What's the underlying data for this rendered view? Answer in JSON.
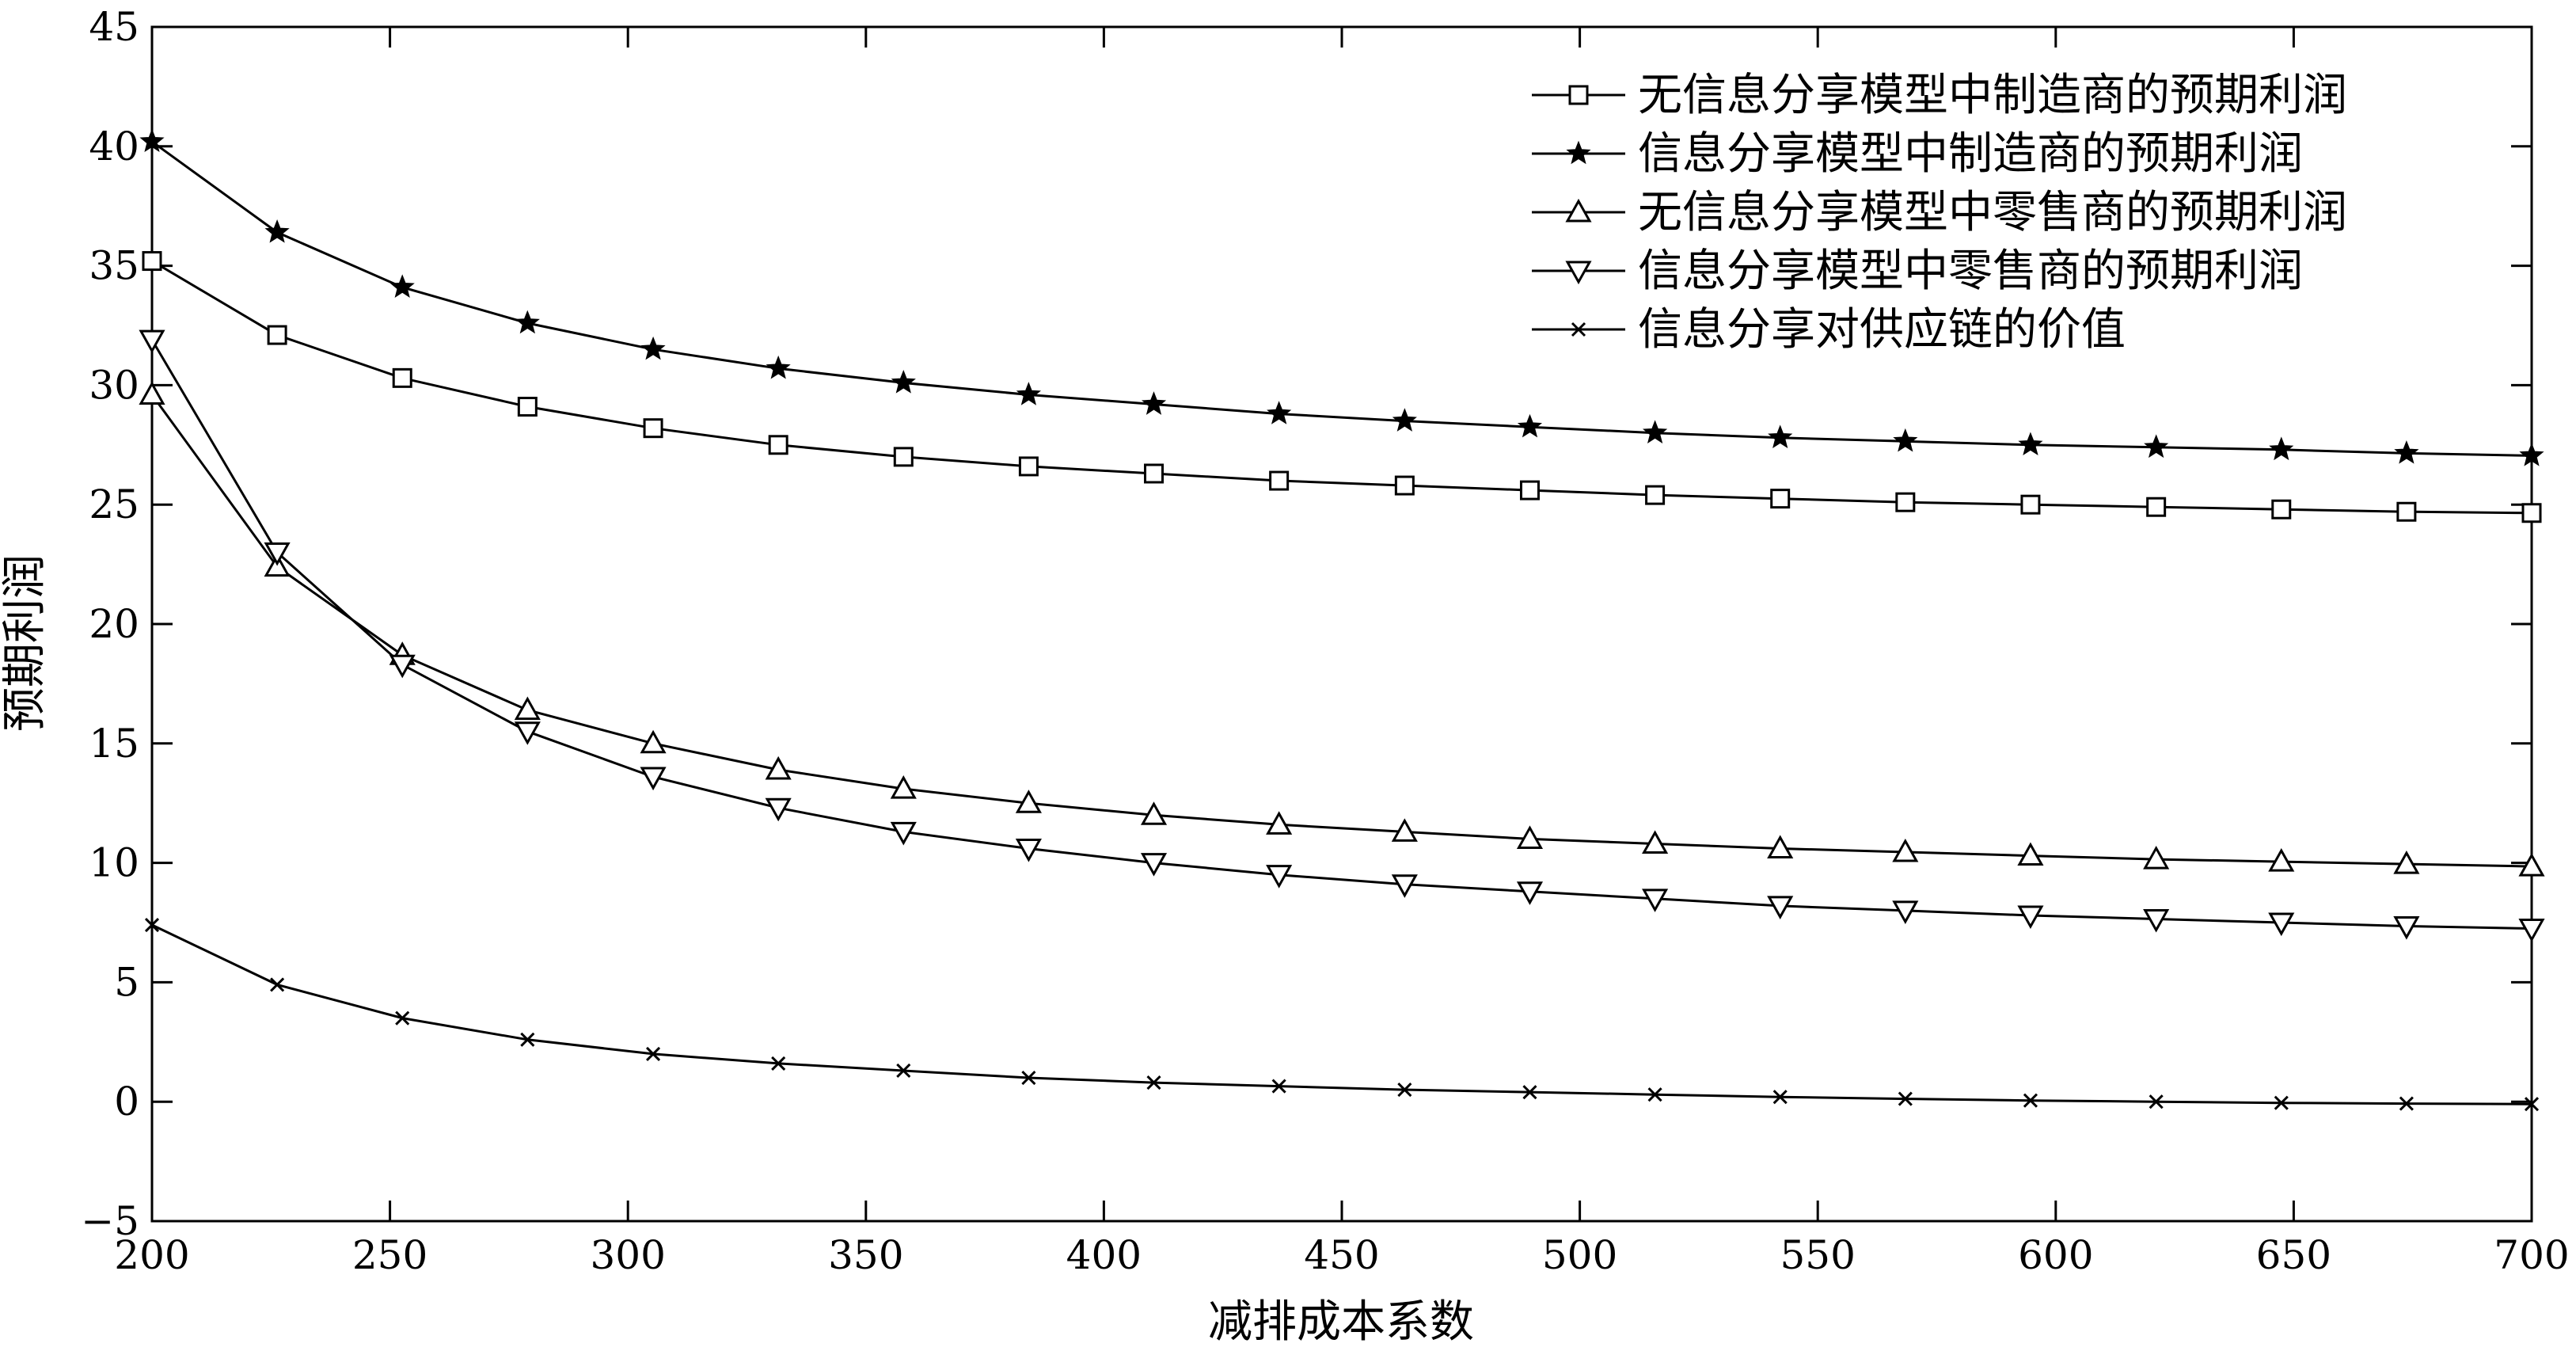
{
  "chart_data": {
    "type": "line",
    "title": "",
    "xlabel": "减排成本系数",
    "ylabel": "预期利润",
    "xlim": [
      200,
      700
    ],
    "ylim": [
      -5,
      45
    ],
    "xticks": [
      200,
      250,
      300,
      350,
      400,
      450,
      500,
      550,
      600,
      650,
      700
    ],
    "yticks": [
      -5,
      0,
      5,
      10,
      15,
      20,
      25,
      30,
      35,
      40,
      45
    ],
    "grid": false,
    "legend_position": "top-right",
    "x": [
      200,
      226.3,
      252.6,
      278.9,
      305.3,
      331.6,
      357.9,
      384.2,
      410.5,
      436.8,
      463.2,
      489.5,
      515.8,
      542.1,
      568.4,
      594.7,
      621.1,
      647.4,
      673.7,
      700
    ],
    "series": [
      {
        "name": "无信息分享模型中制造商的预期利润",
        "marker": "square",
        "values": [
          35.2,
          32.1,
          30.3,
          29.1,
          28.2,
          27.5,
          27.0,
          26.6,
          26.3,
          26.0,
          25.8,
          25.6,
          25.4,
          25.25,
          25.1,
          25.0,
          24.9,
          24.8,
          24.7,
          24.65
        ]
      },
      {
        "name": "信息分享模型中制造商的预期利润",
        "marker": "star",
        "values": [
          40.2,
          36.4,
          34.1,
          32.6,
          31.5,
          30.7,
          30.1,
          29.6,
          29.2,
          28.8,
          28.5,
          28.25,
          28.0,
          27.8,
          27.65,
          27.5,
          27.4,
          27.3,
          27.15,
          27.05
        ]
      },
      {
        "name": "无信息分享模型中零售商的预期利润",
        "marker": "triangle-up",
        "values": [
          29.6,
          22.4,
          18.7,
          16.4,
          15.0,
          13.9,
          13.1,
          12.5,
          12.0,
          11.6,
          11.3,
          11.0,
          10.8,
          10.6,
          10.45,
          10.3,
          10.15,
          10.05,
          9.95,
          9.85
        ]
      },
      {
        "name": "信息分享模型中零售商的预期利润",
        "marker": "triangle-down",
        "values": [
          31.9,
          23.0,
          18.3,
          15.5,
          13.6,
          12.3,
          11.3,
          10.6,
          10.0,
          9.5,
          9.1,
          8.8,
          8.5,
          8.2,
          8.0,
          7.8,
          7.65,
          7.5,
          7.35,
          7.25
        ]
      },
      {
        "name": "信息分享对供应链的价值",
        "marker": "x",
        "values": [
          7.4,
          4.9,
          3.5,
          2.6,
          2.0,
          1.6,
          1.3,
          1.0,
          0.8,
          0.65,
          0.5,
          0.4,
          0.3,
          0.2,
          0.12,
          0.05,
          0.0,
          -0.05,
          -0.08,
          -0.1
        ]
      }
    ]
  }
}
